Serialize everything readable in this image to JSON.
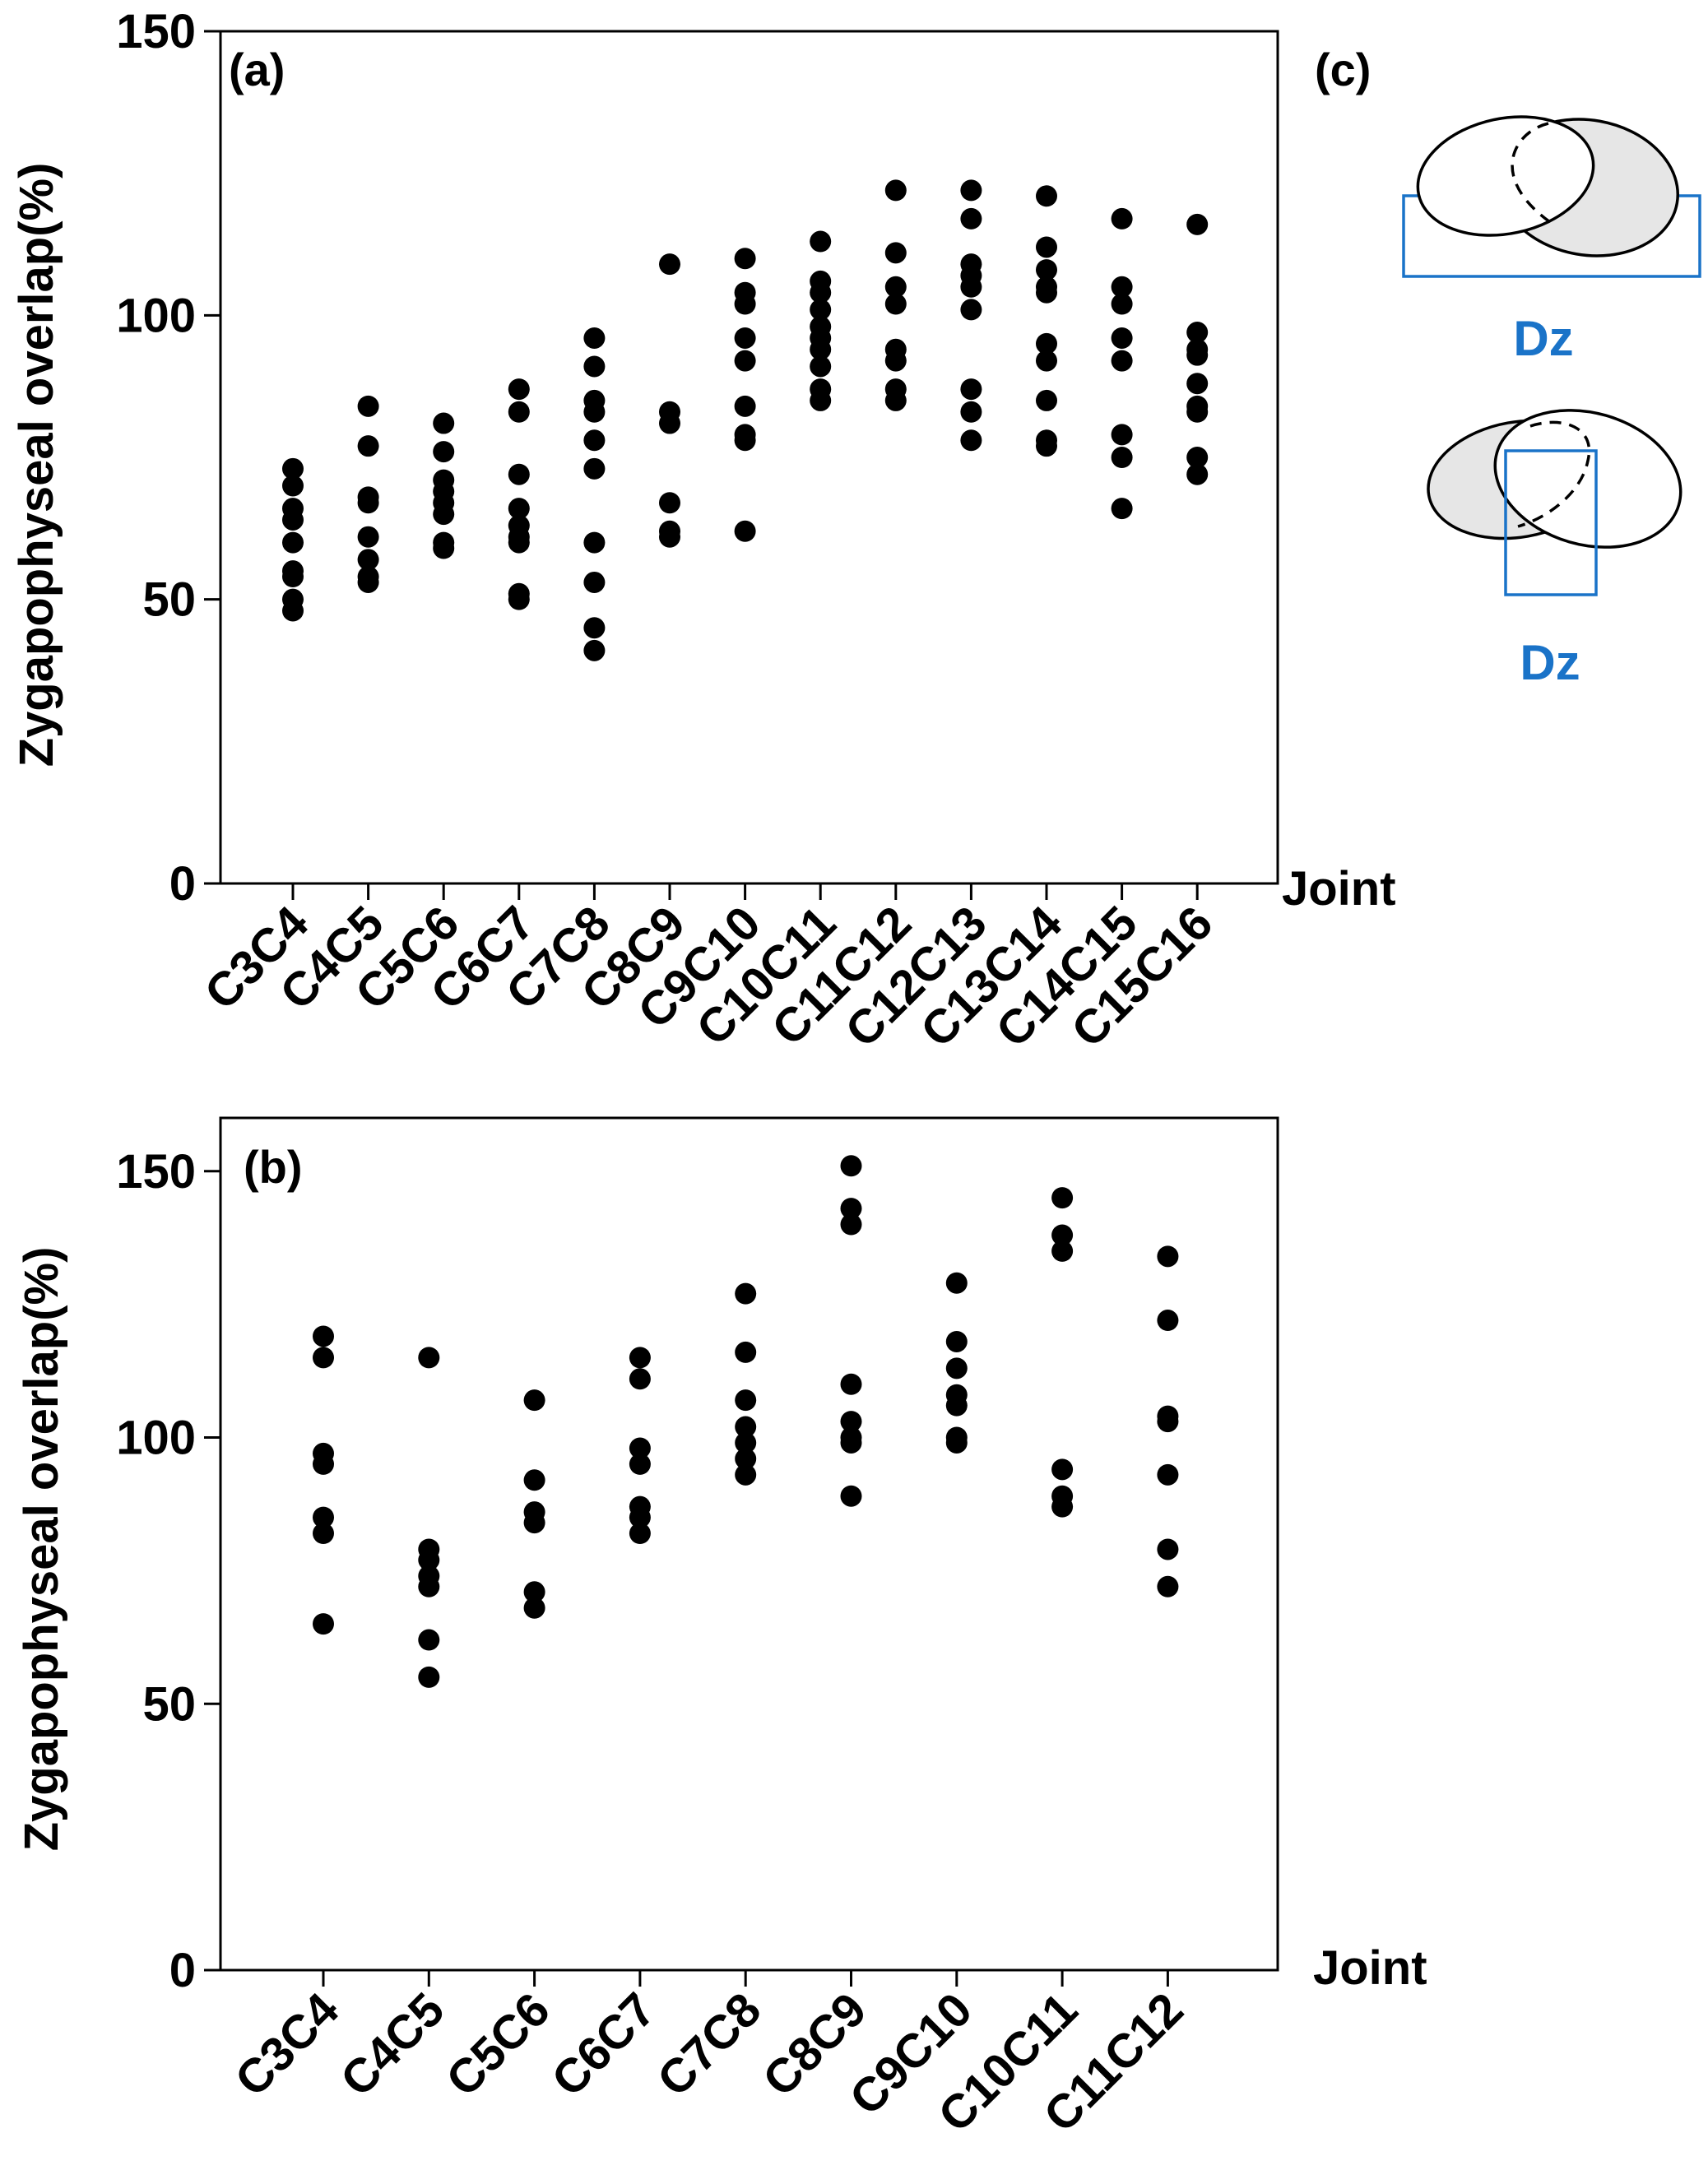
{
  "chart_data": [
    {
      "id": "a",
      "type": "scatter",
      "panel_label": "(a)",
      "ylabel": "Zygapophyseal overlap(%)",
      "xlabel": "Joint",
      "ylim": [
        0,
        150
      ],
      "yticks": [
        0,
        50,
        100,
        150
      ],
      "grid": false,
      "categories": [
        "C3C4",
        "C4C5",
        "C5C6",
        "C6C7",
        "C7C8",
        "C8C9",
        "C9C10",
        "C10C11",
        "C11C12",
        "C12C13",
        "C13C14",
        "C14C15",
        "C15C16"
      ],
      "values": [
        [
          73,
          70,
          66,
          64,
          60,
          55,
          54,
          50,
          48
        ],
        [
          84,
          77,
          68,
          67,
          61,
          57,
          54,
          53
        ],
        [
          81,
          76,
          71,
          69,
          67,
          65,
          60,
          59
        ],
        [
          87,
          83,
          72,
          66,
          63,
          61,
          60,
          51,
          50
        ],
        [
          96,
          91,
          85,
          83,
          78,
          73,
          60,
          53,
          45,
          41
        ],
        [
          109,
          83,
          81,
          67,
          62,
          61
        ],
        [
          110,
          104,
          102,
          96,
          92,
          84,
          79,
          78,
          62
        ],
        [
          113,
          106,
          104,
          101,
          98,
          96,
          94,
          91,
          87,
          85
        ],
        [
          122,
          111,
          105,
          102,
          94,
          92,
          87,
          85
        ],
        [
          122,
          117,
          109,
          107,
          105,
          101,
          87,
          83,
          78
        ],
        [
          121,
          112,
          108,
          105,
          104,
          95,
          92,
          85,
          78,
          77
        ],
        [
          117,
          105,
          102,
          96,
          92,
          79,
          75,
          66
        ],
        [
          116,
          97,
          94,
          93,
          88,
          84,
          83,
          75,
          72
        ]
      ]
    },
    {
      "id": "b",
      "type": "scatter",
      "panel_label": "(b)",
      "ylabel": "Zygapophyseal overlap(%)",
      "xlabel": "Joint",
      "ylim": [
        0,
        160
      ],
      "yticks": [
        0,
        50,
        100,
        150
      ],
      "grid": false,
      "categories": [
        "C3C4",
        "C4C5",
        "C5C6",
        "C6C7",
        "C7C8",
        "C8C9",
        "C9C10",
        "C10C11",
        "C11C12"
      ],
      "values": [
        [
          119,
          115,
          97,
          95,
          85,
          82,
          65
        ],
        [
          115,
          79,
          77,
          74,
          72,
          62,
          55
        ],
        [
          107,
          92,
          86,
          84,
          71,
          68
        ],
        [
          115,
          111,
          98,
          95,
          87,
          85,
          82
        ],
        [
          127,
          116,
          107,
          102,
          99,
          96,
          93
        ],
        [
          151,
          143,
          140,
          110,
          103,
          100,
          99,
          89
        ],
        [
          129,
          118,
          113,
          108,
          106,
          100,
          99
        ],
        [
          145,
          138,
          135,
          94,
          89,
          87
        ],
        [
          134,
          122,
          104,
          103,
          93,
          79,
          72
        ]
      ]
    }
  ],
  "panel_c": {
    "label": "(c)",
    "dz_top": "Dz",
    "dz_bottom": "Dz"
  }
}
